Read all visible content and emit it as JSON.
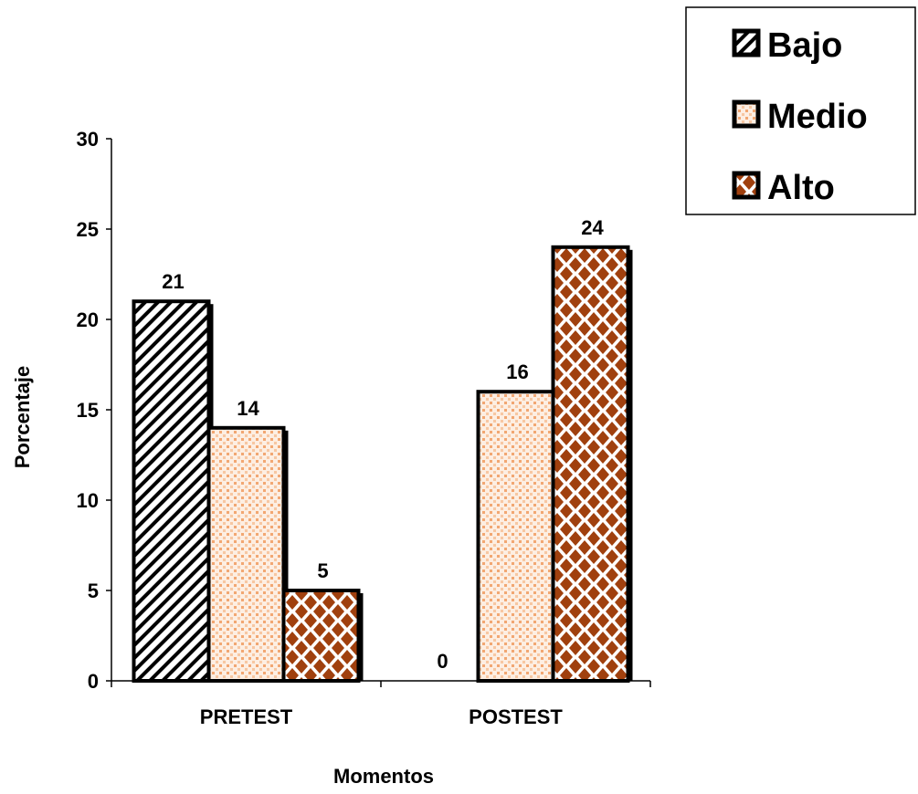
{
  "chart_data": {
    "type": "bar",
    "title": "",
    "xlabel": "Momentos",
    "ylabel": "Porcentaje",
    "ylim": [
      0,
      30
    ],
    "yticks": [
      "0",
      "5",
      "10",
      "15",
      "20",
      "25",
      "30"
    ],
    "categories": [
      "PRETEST",
      "POSTEST"
    ],
    "series": [
      {
        "name": "Bajo",
        "values": [
          21,
          0
        ],
        "labels": [
          "21",
          "0"
        ],
        "pattern": "hatch",
        "color": "#000000"
      },
      {
        "name": "Medio",
        "values": [
          14,
          16
        ],
        "labels": [
          "14",
          "16"
        ],
        "pattern": "dots",
        "color": "#f5b98a"
      },
      {
        "name": "Alto",
        "values": [
          5,
          24
        ],
        "labels": [
          "5",
          "24"
        ],
        "pattern": "diamond",
        "color": "#a0400e"
      }
    ],
    "legend_position": "top-right",
    "grid": false
  }
}
